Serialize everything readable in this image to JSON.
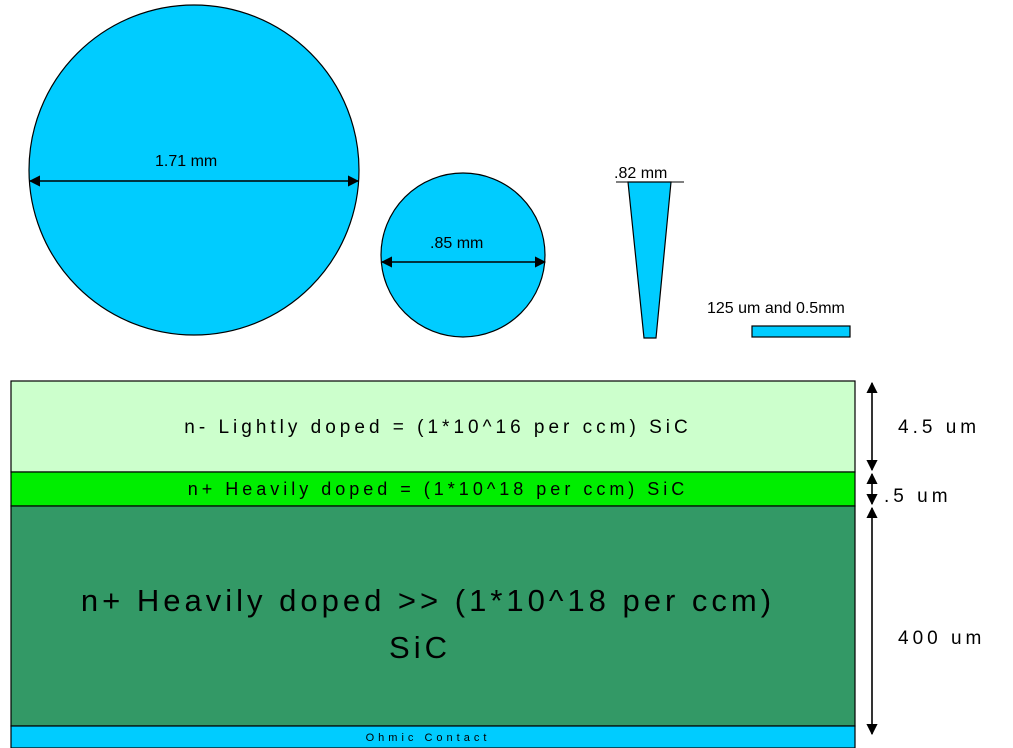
{
  "colors": {
    "device": "#00ccff",
    "light_layer": "#ccffcc",
    "heavy_layer": "#00ee00",
    "substrate": "#339966",
    "contact": "#00ccff",
    "outline": "#000000"
  },
  "devices": {
    "large_circle": {
      "label": "1.71 mm"
    },
    "small_circle": {
      "label": ".85 mm"
    },
    "wedge": {
      "label": ".82 mm"
    },
    "strip": {
      "label": "125 um and 0.5mm"
    }
  },
  "layers": {
    "lightly_doped": "n- Lightly doped  = (1*10^16 per  ccm) SiC",
    "heavily_doped_thin": "n+  Heavily doped = (1*10^18 per  ccm) SiC",
    "substrate_line1": "n+ Heavily doped >> (1*10^18 per ccm)",
    "substrate_line2": "SiC",
    "contact": "Ohmic Contact"
  },
  "thickness_labels": {
    "lightly_doped": "4.5 um",
    "heavily_doped_thin": ".5 um",
    "substrate": "400 um"
  }
}
